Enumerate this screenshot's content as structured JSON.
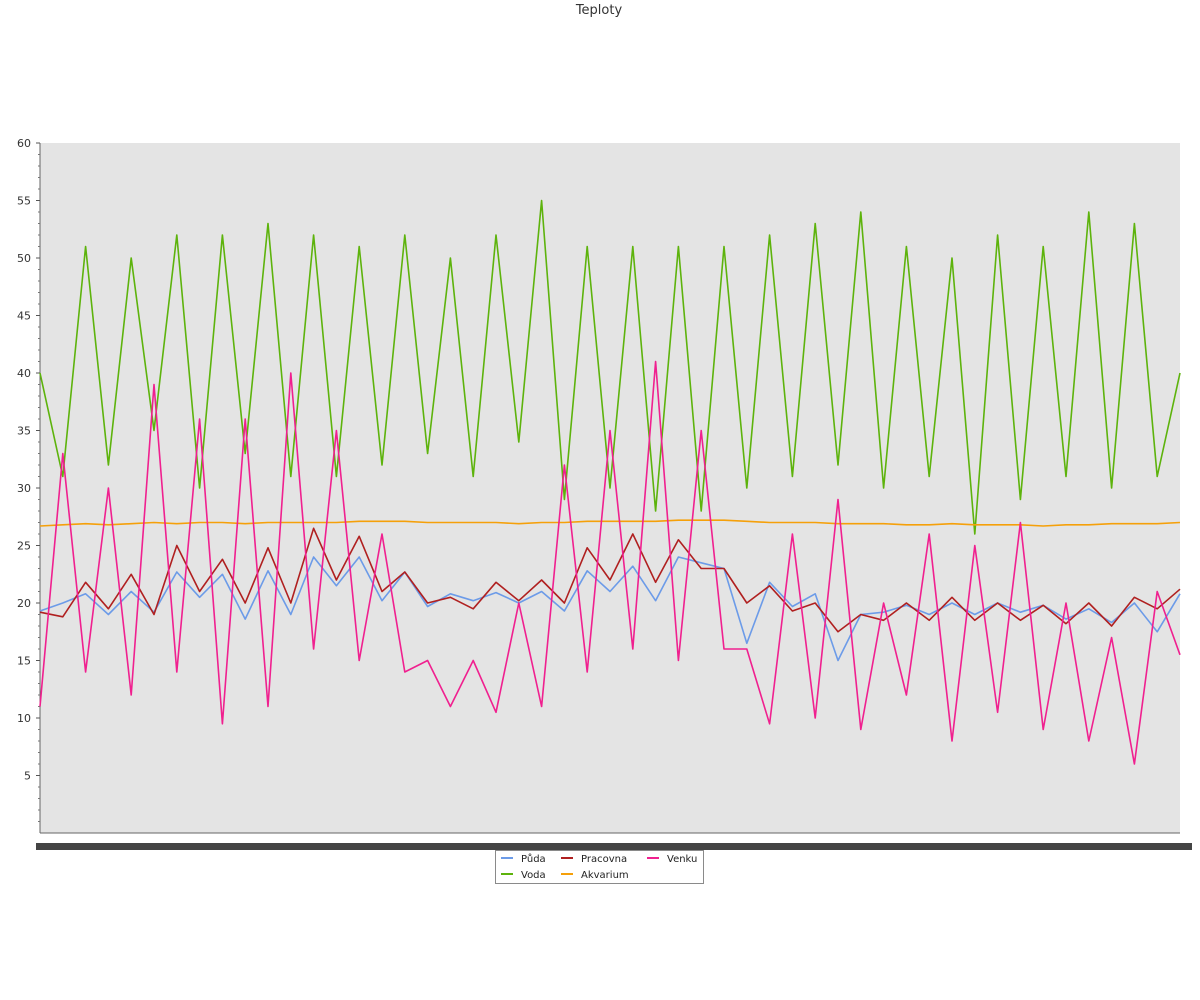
{
  "chart_data": {
    "type": "line",
    "title": "Teploty",
    "xlabel": "",
    "ylabel": "",
    "ylim": [
      0,
      60
    ],
    "yticks": [
      5,
      10,
      15,
      20,
      25,
      30,
      35,
      40,
      45,
      50,
      55,
      60
    ],
    "grid": false,
    "plot_background": "#e4e4e4",
    "legend_position": "bottom-center",
    "x": [
      0,
      2,
      4,
      6,
      8,
      10,
      12,
      14,
      16,
      18,
      20,
      22,
      24,
      26,
      28,
      30,
      32,
      34,
      36,
      38,
      40,
      42,
      44,
      46,
      48,
      50,
      52,
      54,
      56,
      58,
      60,
      62,
      64,
      66,
      68,
      70,
      72,
      74,
      76,
      78,
      80,
      82,
      84,
      86,
      88,
      90,
      92,
      94,
      96,
      98,
      100
    ],
    "series": [
      {
        "name": "Půda",
        "color": "#6c9be8",
        "values": [
          19.3,
          20.0,
          20.8,
          19.0,
          21.0,
          19.2,
          22.7,
          20.5,
          22.5,
          18.6,
          22.8,
          19.0,
          24.0,
          21.5,
          24.0,
          20.2,
          22.7,
          19.7,
          20.8,
          20.2,
          20.9,
          20.0,
          21.0,
          19.3,
          22.8,
          21.0,
          23.2,
          20.2,
          24.0,
          23.5,
          23.0,
          16.5,
          21.8,
          19.7,
          20.8,
          15.0,
          19.0,
          19.2,
          19.8,
          19.0,
          20.0,
          19.0,
          20.0,
          19.2,
          19.8,
          18.6,
          19.5,
          18.3,
          20.0,
          17.5,
          20.8
        ]
      },
      {
        "name": "Pracovna",
        "color": "#b02020",
        "values": [
          19.2,
          18.8,
          21.8,
          19.5,
          22.5,
          19.0,
          25.0,
          21.0,
          23.8,
          20.0,
          24.8,
          20.0,
          26.5,
          22.0,
          25.8,
          21.0,
          22.7,
          20.0,
          20.5,
          19.5,
          21.8,
          20.2,
          22.0,
          20.0,
          24.8,
          22.0,
          26.0,
          21.8,
          25.5,
          23.0,
          23.0,
          20.0,
          21.5,
          19.3,
          20.0,
          17.5,
          19.0,
          18.5,
          20.0,
          18.5,
          20.5,
          18.5,
          20.0,
          18.5,
          19.8,
          18.2,
          20.0,
          18.0,
          20.5,
          19.5,
          21.2
        ]
      },
      {
        "name": "Voda",
        "color": "#5db30c",
        "values": [
          40.0,
          31.0,
          51.0,
          32.0,
          50.0,
          35.0,
          52.0,
          30.0,
          52.0,
          33.0,
          53.0,
          31.0,
          52.0,
          31.0,
          51.0,
          32.0,
          52.0,
          33.0,
          50.0,
          31.0,
          52.0,
          34.0,
          55.0,
          29.0,
          51.0,
          30.0,
          51.0,
          28.0,
          51.0,
          28.0,
          51.0,
          30.0,
          52.0,
          31.0,
          53.0,
          32.0,
          54.0,
          30.0,
          51.0,
          31.0,
          50.0,
          26.0,
          52.0,
          29.0,
          51.0,
          31.0,
          54.0,
          30.0,
          53.0,
          31.0,
          40.0
        ]
      },
      {
        "name": "Akvarium",
        "color": "#f5a00a",
        "values": [
          26.7,
          26.8,
          26.9,
          26.8,
          26.9,
          27.0,
          26.9,
          27.0,
          27.0,
          26.9,
          27.0,
          27.0,
          27.0,
          27.0,
          27.1,
          27.1,
          27.1,
          27.0,
          27.0,
          27.0,
          27.0,
          26.9,
          27.0,
          27.0,
          27.1,
          27.1,
          27.1,
          27.1,
          27.2,
          27.2,
          27.2,
          27.1,
          27.0,
          27.0,
          27.0,
          26.9,
          26.9,
          26.9,
          26.8,
          26.8,
          26.9,
          26.8,
          26.8,
          26.8,
          26.7,
          26.8,
          26.8,
          26.9,
          26.9,
          26.9,
          27.0
        ]
      },
      {
        "name": "Venku",
        "color": "#f0208f",
        "values": [
          11.0,
          33.0,
          14.0,
          30.0,
          12.0,
          39.0,
          14.0,
          36.0,
          9.5,
          36.0,
          11.0,
          40.0,
          16.0,
          35.0,
          15.0,
          26.0,
          14.0,
          15.0,
          11.0,
          15.0,
          10.5,
          20.0,
          11.0,
          32.0,
          14.0,
          35.0,
          16.0,
          41.0,
          15.0,
          35.0,
          16.0,
          16.0,
          9.5,
          26.0,
          10.0,
          29.0,
          9.0,
          20.0,
          12.0,
          26.0,
          8.0,
          25.0,
          10.5,
          27.0,
          9.0,
          20.0,
          8.0,
          17.0,
          6.0,
          21.0,
          15.5
        ]
      }
    ]
  }
}
